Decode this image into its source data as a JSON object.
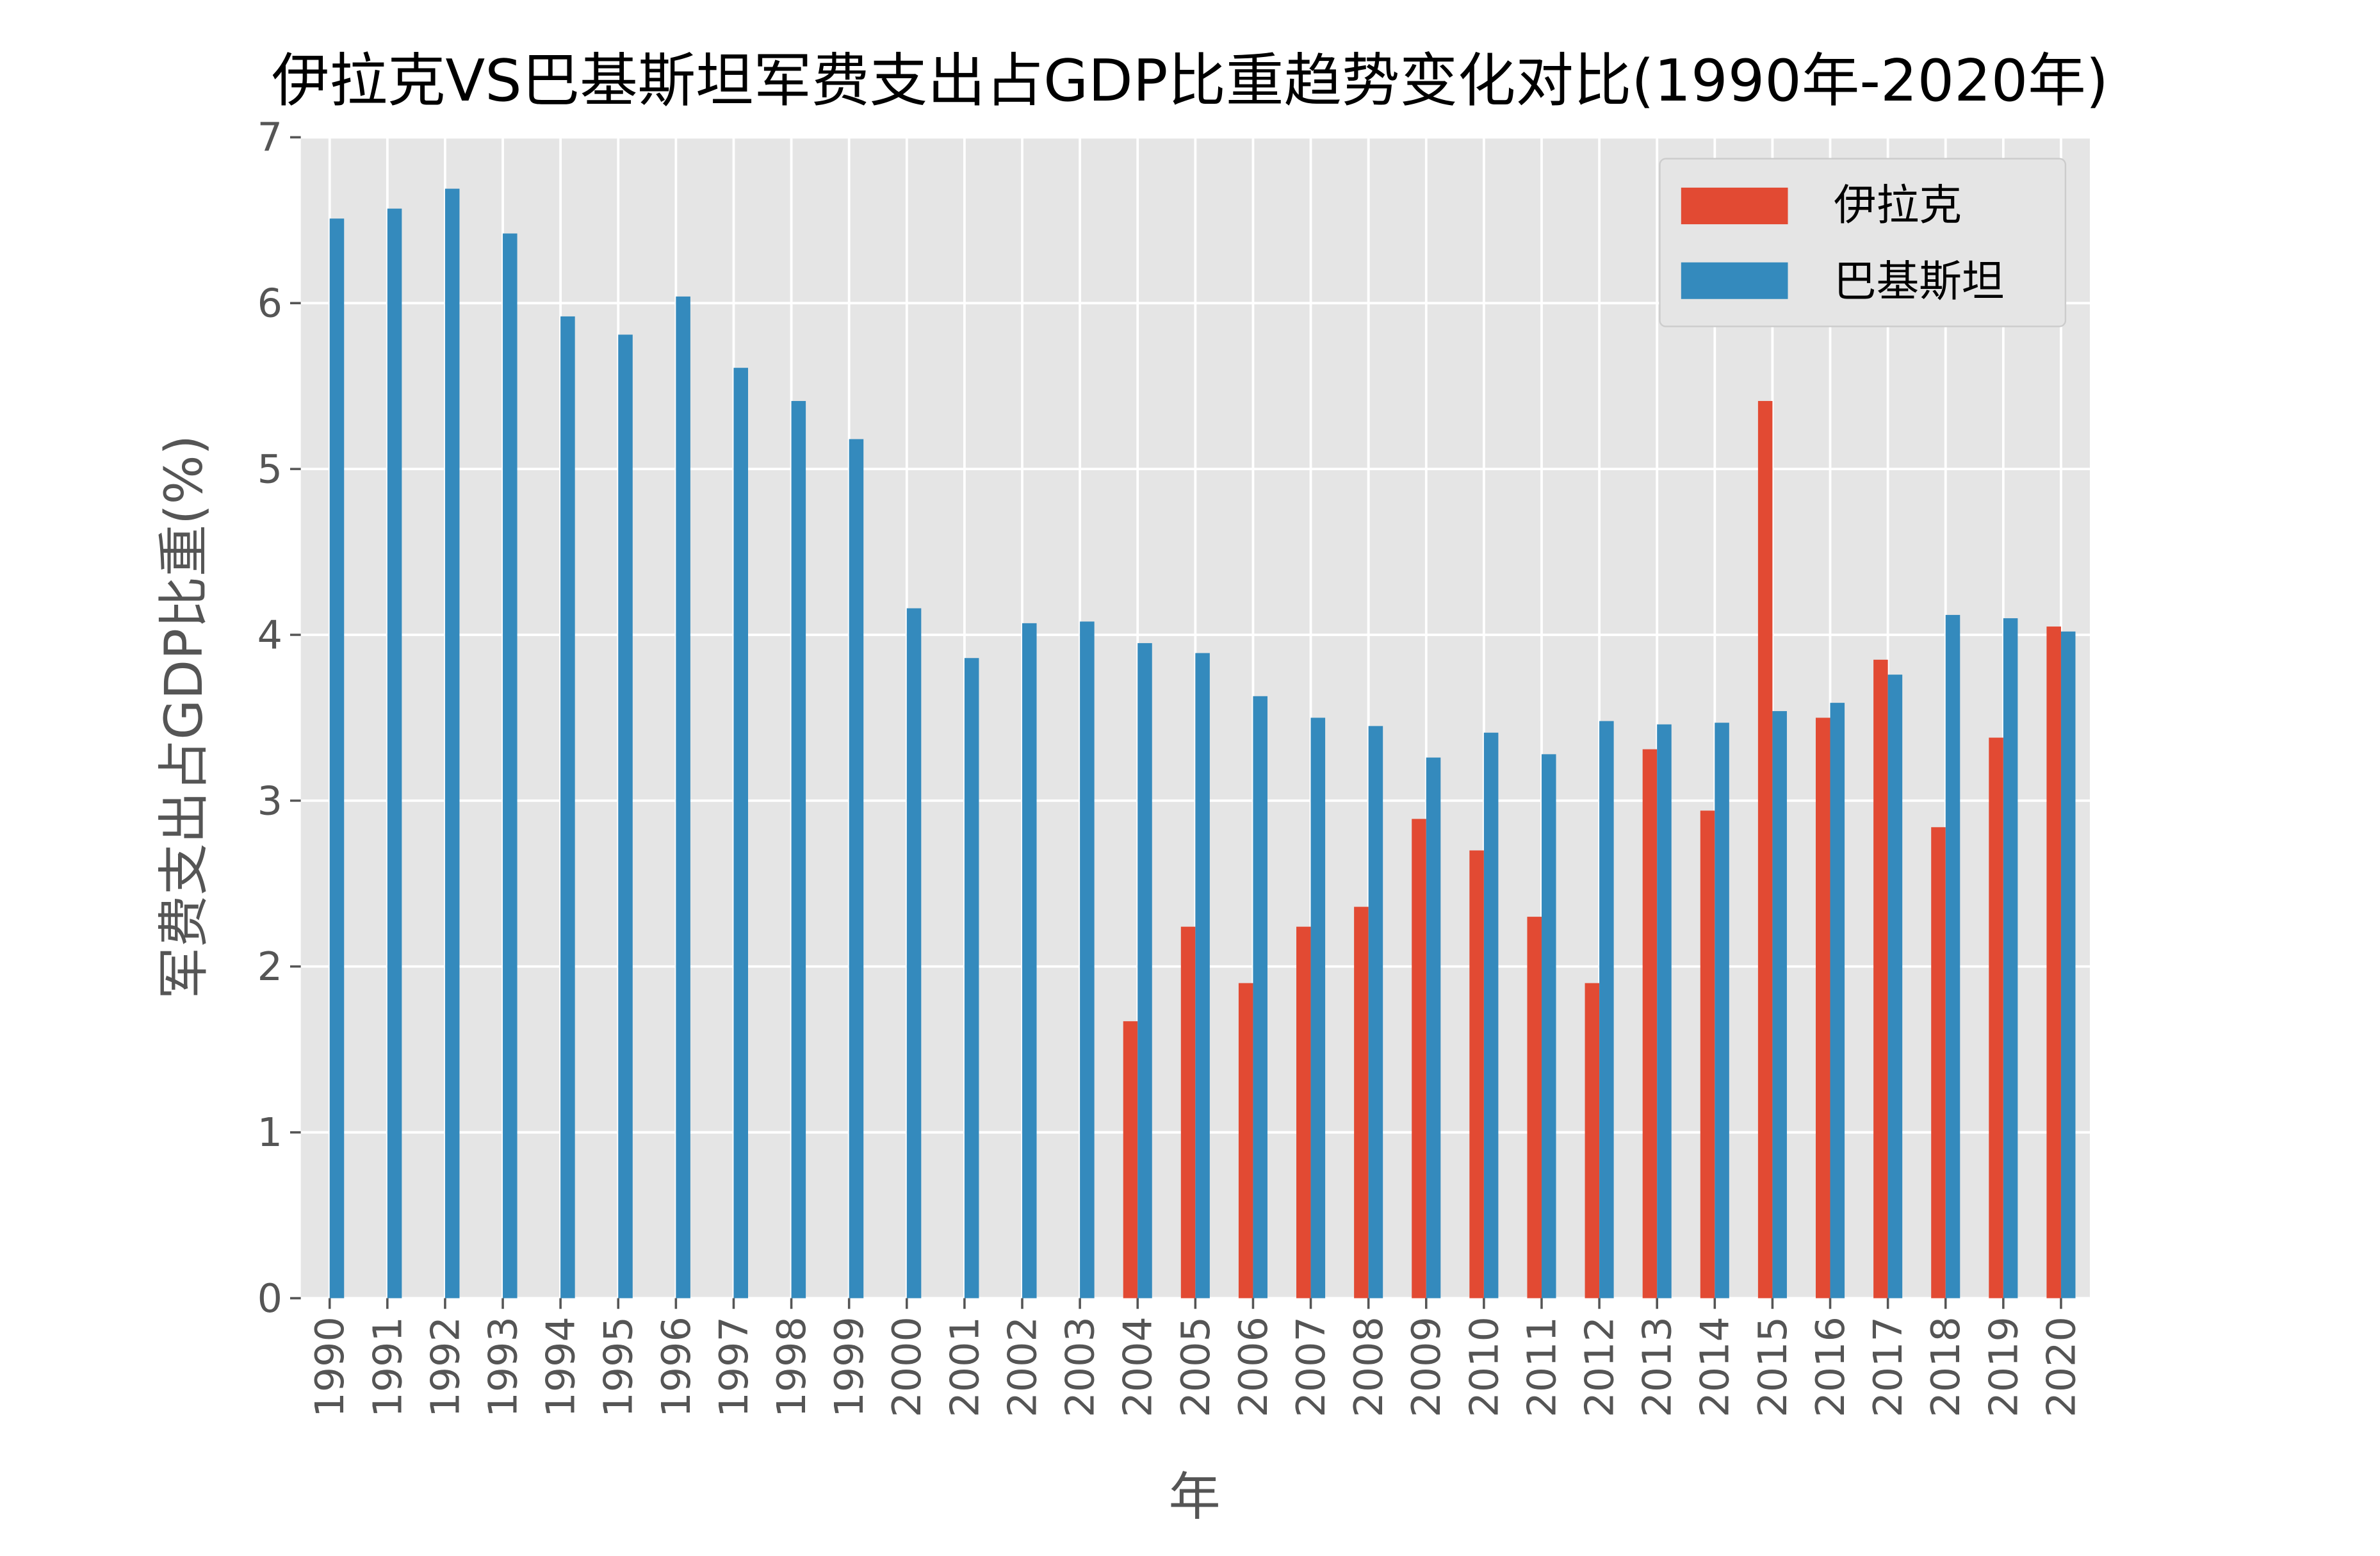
{
  "chart_data": {
    "type": "bar",
    "title": "伊拉克VS巴基斯坦军费支出占GDP比重趋势变化对比(1990年-2020年)",
    "xlabel": "年",
    "ylabel": "军费支出占GDP比重(%)",
    "ylim": [
      0,
      7
    ],
    "yticks": [
      0,
      1,
      2,
      3,
      4,
      5,
      6,
      7
    ],
    "grid": true,
    "legend_placement": "top-right",
    "categories": [
      "1990",
      "1991",
      "1992",
      "1993",
      "1994",
      "1995",
      "1996",
      "1997",
      "1998",
      "1999",
      "2000",
      "2001",
      "2002",
      "2003",
      "2004",
      "2005",
      "2006",
      "2007",
      "2008",
      "2009",
      "2010",
      "2011",
      "2012",
      "2013",
      "2014",
      "2015",
      "2016",
      "2017",
      "2018",
      "2019",
      "2020"
    ],
    "series": [
      {
        "name": "伊拉克",
        "color": "#E24A33",
        "values": [
          null,
          null,
          null,
          null,
          null,
          null,
          null,
          null,
          null,
          null,
          null,
          null,
          null,
          null,
          1.67,
          2.24,
          1.9,
          2.24,
          2.36,
          2.89,
          2.7,
          2.3,
          1.9,
          3.31,
          2.94,
          5.41,
          3.5,
          3.85,
          2.84,
          3.38,
          4.05
        ]
      },
      {
        "name": "巴基斯坦",
        "color": "#348ABD",
        "values": [
          6.51,
          6.57,
          6.69,
          6.42,
          5.92,
          5.81,
          6.04,
          5.61,
          5.41,
          5.18,
          4.16,
          3.86,
          4.07,
          4.08,
          3.95,
          3.89,
          3.63,
          3.5,
          3.45,
          3.26,
          3.41,
          3.28,
          3.48,
          3.46,
          3.47,
          3.54,
          3.59,
          3.76,
          4.12,
          4.1,
          4.02
        ]
      }
    ],
    "colors": {
      "background": "#E5E5E5",
      "grid": "#FFFFFF",
      "text": "#555555"
    }
  }
}
